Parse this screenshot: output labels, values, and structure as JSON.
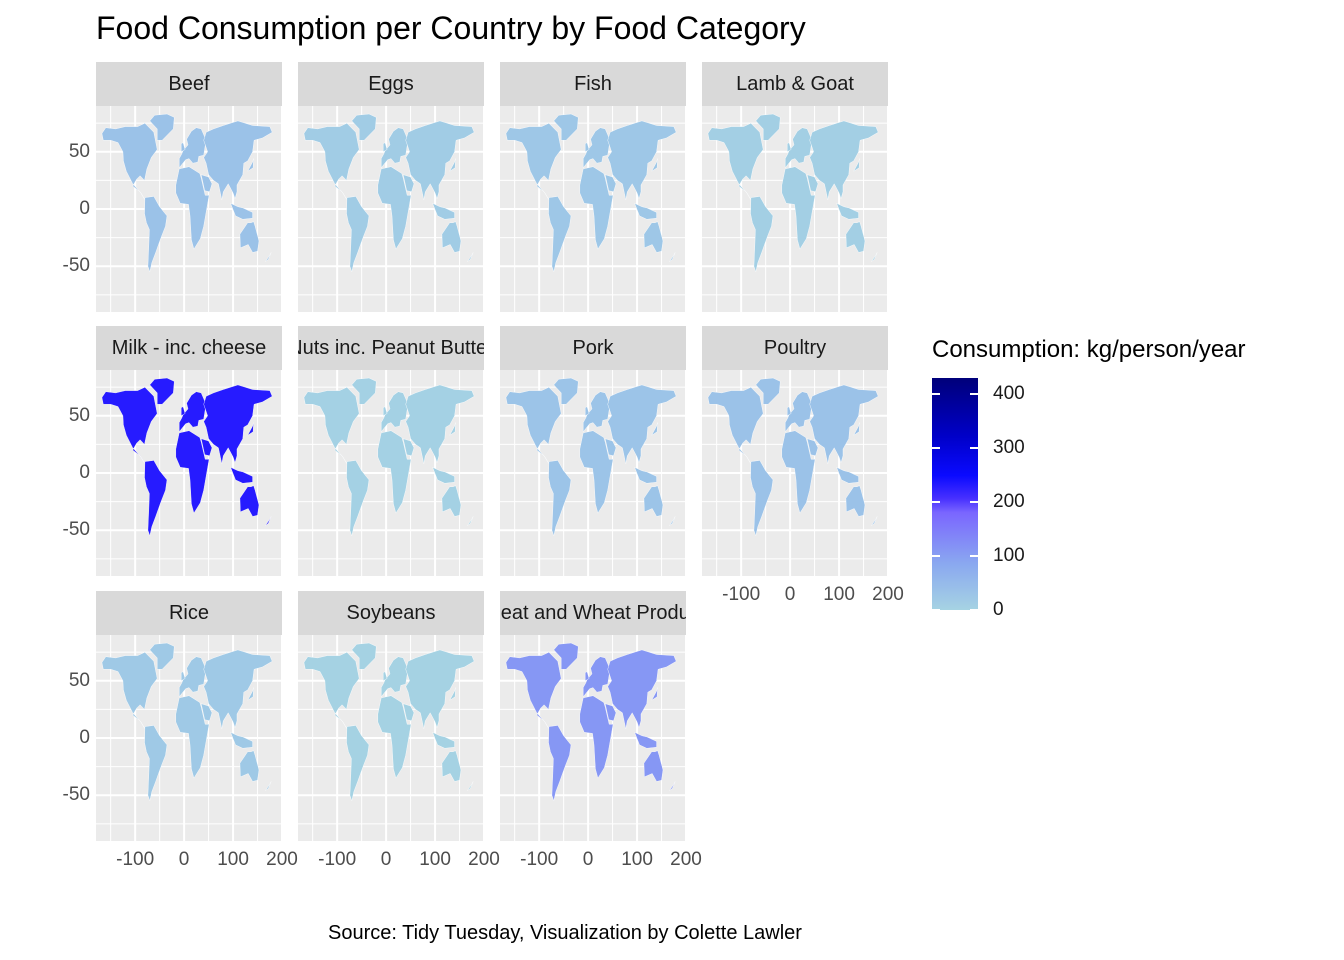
{
  "title": "Food Consumption per Country by Food Category",
  "caption": "Source: Tidy Tuesday, Visualization by Colette Lawler",
  "legend": {
    "title": "Consumption: kg/person/year",
    "ticks": [
      "400",
      "300",
      "200",
      "100",
      "0"
    ],
    "range": [
      0,
      430
    ],
    "colors": {
      "low": "#a6d3e3",
      "mid": "#7a66ff",
      "high": "#00007a"
    }
  },
  "axes": {
    "y_ticks": [
      "50",
      "0",
      "-50"
    ],
    "x_ticks": [
      "-100",
      "0",
      "100",
      "200"
    ],
    "ylim": [
      -90,
      90
    ],
    "xlim": [
      -180,
      200
    ]
  },
  "facets": [
    {
      "label": "Beef",
      "level": 35
    },
    {
      "label": "Eggs",
      "level": 15
    },
    {
      "label": "Fish",
      "level": 25
    },
    {
      "label": "Lamb & Goat",
      "level": 8
    },
    {
      "label": "Milk - inc. cheese",
      "level": 230
    },
    {
      "label": "Nuts inc. Peanut Butter",
      "level": 5
    },
    {
      "label": "Pork",
      "level": 30
    },
    {
      "label": "Poultry",
      "level": 35
    },
    {
      "label": "Rice",
      "level": 20
    },
    {
      "label": "Soybeans",
      "level": 3
    },
    {
      "label": "Wheat and Wheat Products",
      "level": 110
    }
  ],
  "chart_data": {
    "type": "heatmap",
    "title": "Food Consumption per Country by Food Category",
    "facets": [
      "Beef",
      "Eggs",
      "Fish",
      "Lamb & Goat",
      "Milk - inc. cheese",
      "Nuts inc. Peanut Butter",
      "Pork",
      "Poultry",
      "Rice",
      "Soybeans",
      "Wheat and Wheat Products"
    ],
    "fill_label": "Consumption: kg/person/year",
    "fill_range": [
      0,
      430
    ],
    "x_range": [
      -180,
      200
    ],
    "y_range": [
      -90,
      90
    ]
  }
}
